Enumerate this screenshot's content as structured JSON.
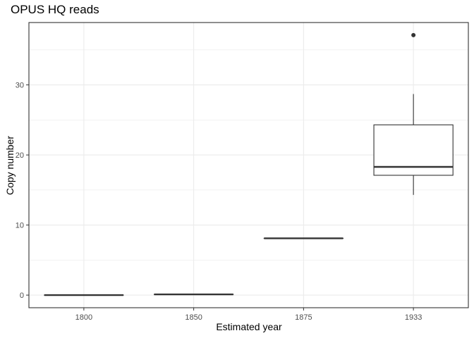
{
  "chart_data": {
    "type": "boxplot",
    "title": "OPUS HQ reads",
    "xlabel": "Estimated year",
    "ylabel": "Copy number",
    "categories": [
      "1800",
      "1850",
      "1875",
      "1933"
    ],
    "y_ticks": [
      0,
      10,
      20,
      30
    ],
    "ylim": [
      -1.8,
      38.9
    ],
    "grid": true,
    "legend": "none",
    "boxes": [
      {
        "category": "1800",
        "min": 0.0,
        "q1": 0.0,
        "median": 0.0,
        "q3": 0.0,
        "max": 0.0,
        "outliers": []
      },
      {
        "category": "1850",
        "min": 0.1,
        "q1": 0.1,
        "median": 0.1,
        "q3": 0.1,
        "max": 0.1,
        "outliers": []
      },
      {
        "category": "1875",
        "min": 8.1,
        "q1": 8.1,
        "median": 8.1,
        "q3": 8.1,
        "max": 8.1,
        "outliers": []
      },
      {
        "category": "1933",
        "min": 14.3,
        "q1": 17.1,
        "median": 18.3,
        "q3": 24.3,
        "max": 28.7,
        "outliers": [
          37.1
        ]
      }
    ],
    "colors": {
      "box_line": "#333333",
      "grid": "#ebebeb",
      "panel_border": "#333333",
      "tick_label": "#4d4d4d"
    }
  }
}
